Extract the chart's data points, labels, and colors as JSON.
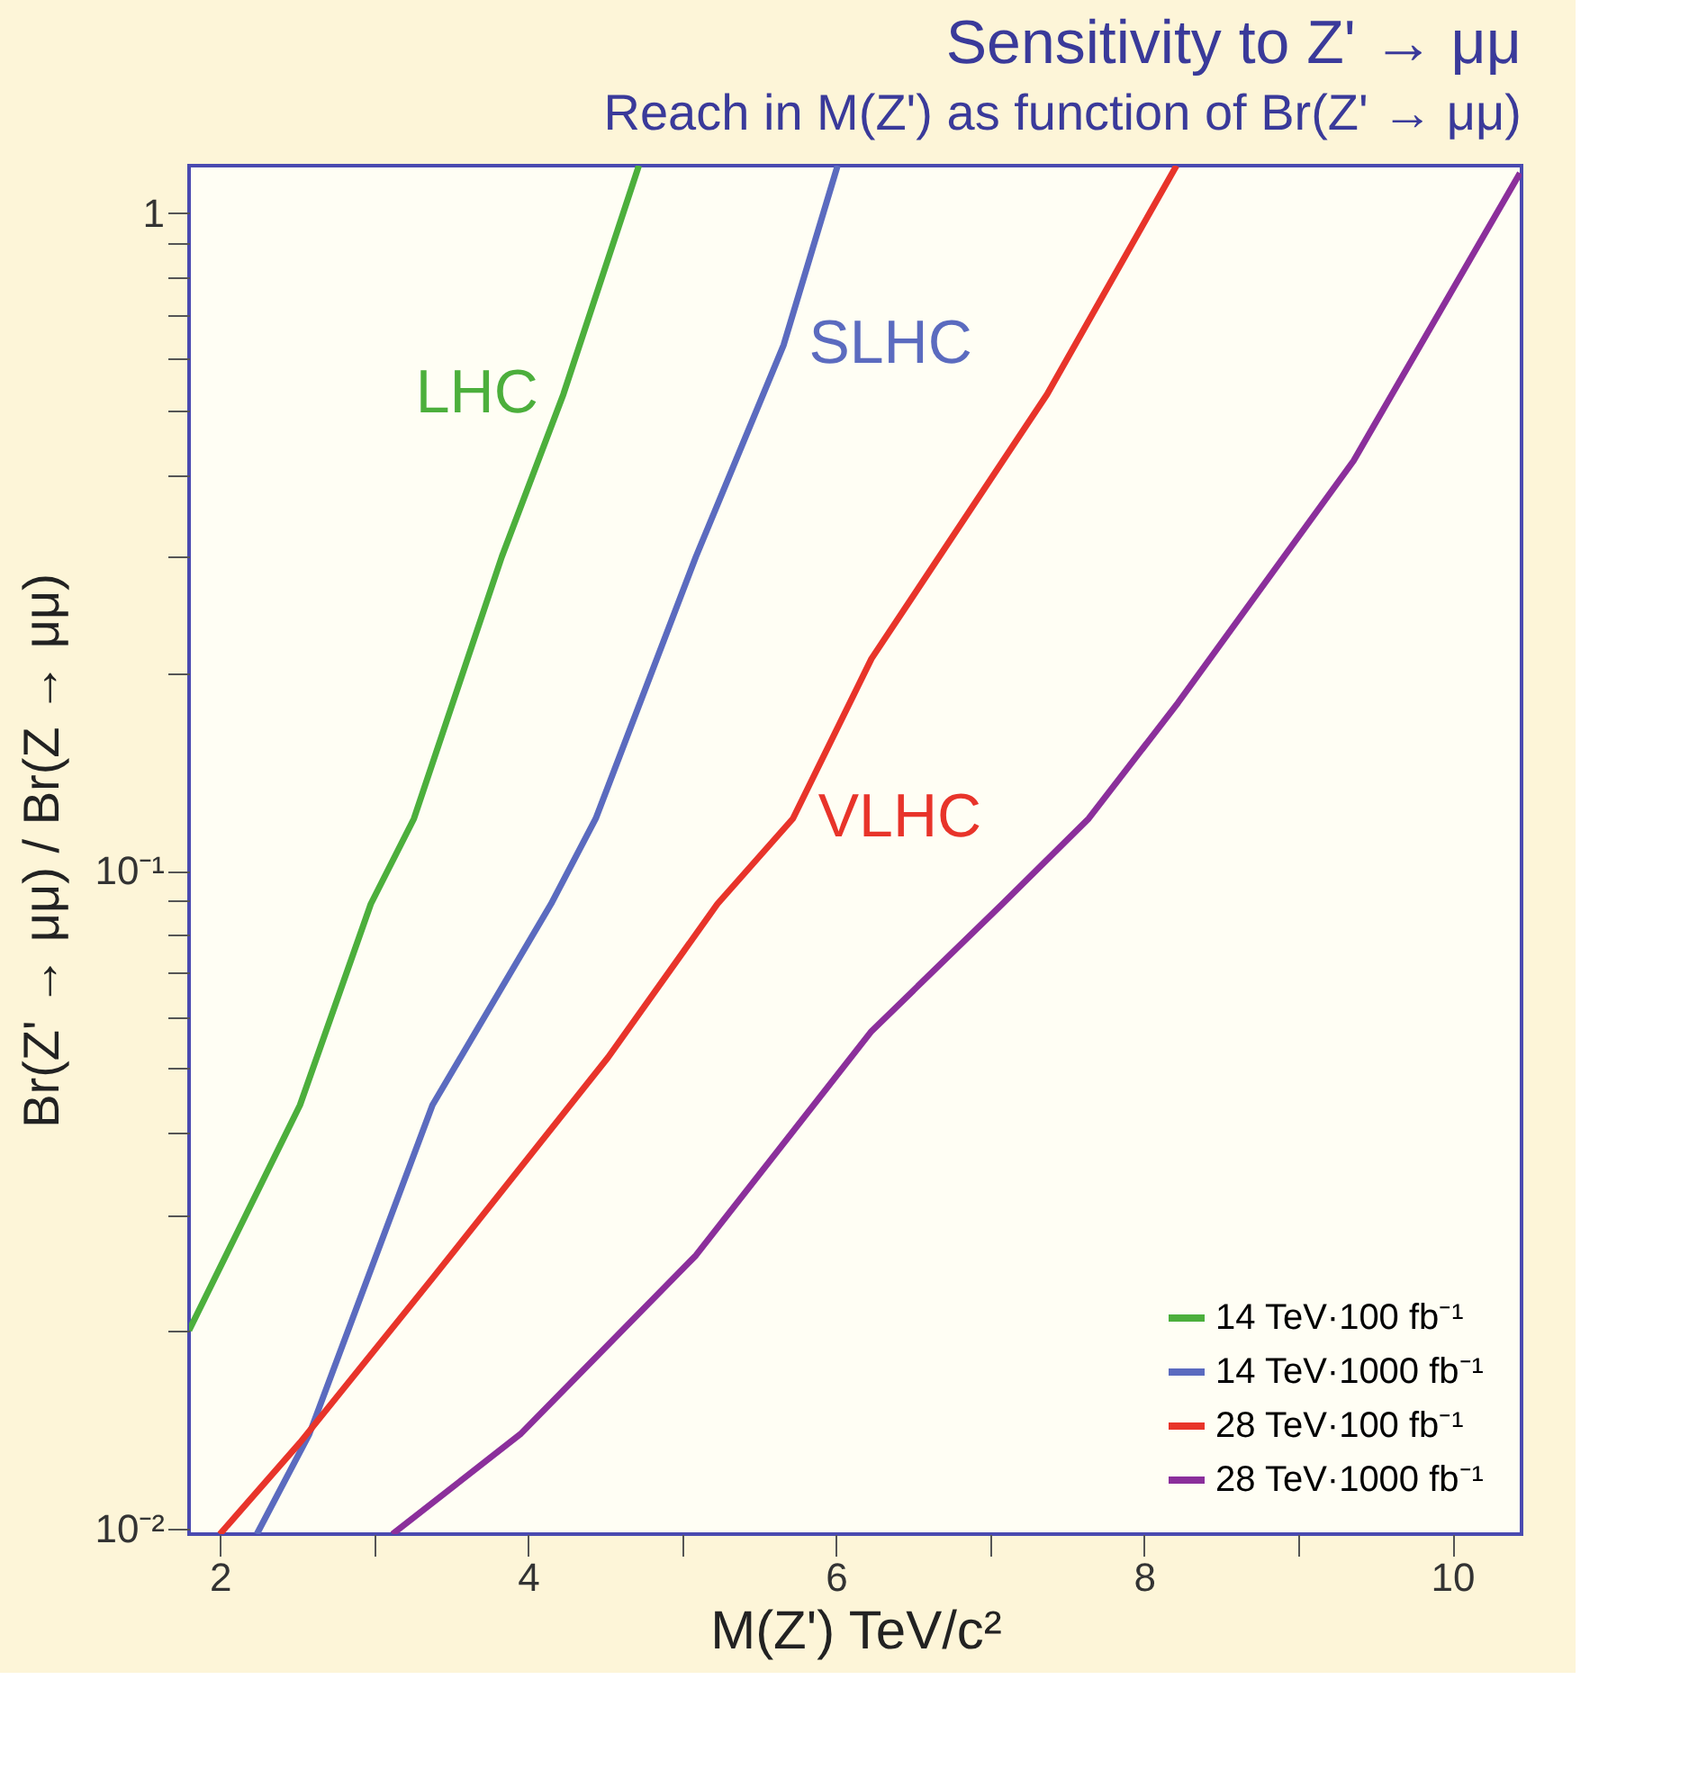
{
  "chart_data": {
    "type": "line",
    "title": "Sensitivity to Z' → μμ",
    "subtitle": "Reach in M(Z') as  function of Br(Z' → μμ)",
    "xlabel": "M(Z') TeV/c²",
    "ylabel": "Br(Z' → μμ) / Br(Z → μμ)",
    "log": "y",
    "grid": false,
    "legend": "bottom right",
    "line_style": "solid",
    "marker": "none",
    "xlim": [
      1.8,
      10.45
    ],
    "ylim": [
      0.0098,
      1.18
    ],
    "xticks": [
      2,
      {
        "value": 3,
        "label": null
      },
      4,
      {
        "value": 5,
        "label": null
      },
      6,
      {
        "value": 7,
        "label": null
      },
      8,
      {
        "value": 9,
        "label": null
      },
      10
    ],
    "yticks": [
      {
        "value": 0.01,
        "label": "10⁻²"
      },
      {
        "value": 0.02,
        "label": null
      },
      {
        "value": 0.03,
        "label": null
      },
      {
        "value": 0.04,
        "label": null
      },
      {
        "value": 0.05,
        "label": null
      },
      {
        "value": 0.06,
        "label": null
      },
      {
        "value": 0.07,
        "label": null
      },
      {
        "value": 0.08,
        "label": null
      },
      {
        "value": 0.09,
        "label": null
      },
      {
        "value": 0.1,
        "label": "10⁻¹"
      },
      {
        "value": 0.2,
        "label": null
      },
      {
        "value": 0.3,
        "label": null
      },
      {
        "value": 0.4,
        "label": null
      },
      {
        "value": 0.5,
        "label": null
      },
      {
        "value": 0.6,
        "label": null
      },
      {
        "value": 0.7,
        "label": null
      },
      {
        "value": 0.8,
        "label": null
      },
      {
        "value": 0.9,
        "label": null
      },
      1
    ],
    "series": [
      {
        "name": "14 TeV·100 fb⁻¹",
        "color": "#4caf3c",
        "x": [
          1.8,
          2.52,
          2.98,
          3.26,
          3.83,
          4.23,
          4.72
        ],
        "values": [
          0.02,
          0.044,
          0.089,
          0.12,
          0.3,
          0.53,
          1.18
        ]
      },
      {
        "name": "14 TeV·1000 fb⁻¹",
        "color": "#5b6bbf",
        "x": [
          2.24,
          2.58,
          3.38,
          4.15,
          4.44,
          5.09,
          5.66,
          6.01
        ],
        "values": [
          0.0098,
          0.0139,
          0.044,
          0.089,
          0.12,
          0.3,
          0.63,
          1.18
        ]
      },
      {
        "name": "28 TeV·100 fb⁻¹",
        "color": "#e8342a",
        "x": [
          2.0,
          2.52,
          3.38,
          4.52,
          5.23,
          5.72,
          6.23,
          7.37,
          8.21
        ],
        "values": [
          0.0098,
          0.0135,
          0.024,
          0.052,
          0.089,
          0.12,
          0.21,
          0.53,
          1.18
        ]
      },
      {
        "name": "28 TeV·1000 fb⁻¹",
        "color": "#8b2f9b",
        "x": [
          3.12,
          3.95,
          5.09,
          6.23,
          7.08,
          7.64,
          8.22,
          9.36,
          10.44
        ],
        "values": [
          0.0098,
          0.0139,
          0.026,
          0.057,
          0.089,
          0.12,
          0.18,
          0.42,
          1.15
        ]
      }
    ],
    "annotations": [
      {
        "text": "LHC",
        "x": 4.23,
        "y": 0.53
      },
      {
        "text": "SLHC",
        "x": 5.66,
        "y": 0.63
      },
      {
        "text": "VLHC",
        "x": 5.72,
        "y": 0.12
      }
    ]
  }
}
